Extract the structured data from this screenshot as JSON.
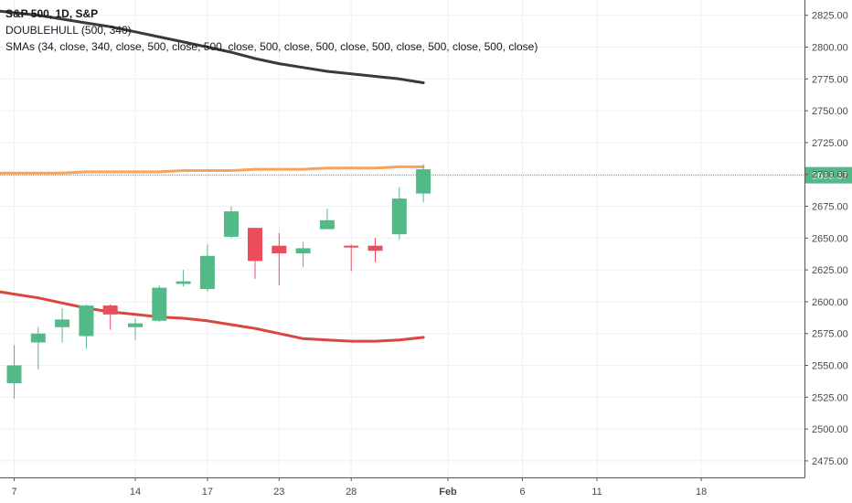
{
  "legend": {
    "title": "S&P 500, 1D, S&P",
    "line2": "DOUBLEHULL (500, 340)",
    "line3": "SMAs (34, close, 340, close, 500, close, 500, close, 500, close, 500, close, 500, close, 500, close, 500, close)"
  },
  "colors": {
    "up": "#53b987",
    "down": "#eb4d5c",
    "sma_dark": "#3a3a3a",
    "sma_orange": "#f7a35c",
    "sma_red": "#d9473d",
    "grid": "#eef0f3",
    "price_tag": "#53b987"
  },
  "chart_data": {
    "type": "candlestick",
    "x_ticks": [
      {
        "label": "7",
        "date": "2019-01-07"
      },
      {
        "label": "14",
        "date": "2019-01-14"
      },
      {
        "label": "17",
        "date": "2019-01-17"
      },
      {
        "label": "23",
        "date": "2019-01-23"
      },
      {
        "label": "28",
        "date": "2019-01-28"
      },
      {
        "label": "Feb",
        "date": "2019-02-01"
      },
      {
        "label": "6",
        "date": "2019-02-06"
      },
      {
        "label": "11",
        "date": "2019-02-11"
      },
      {
        "label": "18",
        "date": "2019-02-18"
      }
    ],
    "y_ticks": [
      2475,
      2500,
      2525,
      2550,
      2575,
      2600,
      2625,
      2650,
      2675,
      2700,
      2725,
      2750,
      2775,
      2800,
      2825
    ],
    "ylim": [
      2462,
      2837
    ],
    "last_price": "2699.37",
    "candles": [
      {
        "date": "2019-01-07",
        "open": 2536,
        "high": 2566,
        "low": 2524,
        "close": 2550
      },
      {
        "date": "2019-01-08",
        "open": 2568,
        "high": 2580,
        "low": 2547,
        "close": 2575
      },
      {
        "date": "2019-01-09",
        "open": 2580,
        "high": 2595,
        "low": 2568,
        "close": 2586
      },
      {
        "date": "2019-01-10",
        "open": 2573,
        "high": 2598,
        "low": 2563,
        "close": 2597
      },
      {
        "date": "2019-01-11",
        "open": 2597,
        "high": 2598,
        "low": 2578,
        "close": 2590
      },
      {
        "date": "2019-01-14",
        "open": 2580,
        "high": 2587,
        "low": 2570,
        "close": 2583
      },
      {
        "date": "2019-01-15",
        "open": 2585,
        "high": 2613,
        "low": 2584,
        "close": 2611
      },
      {
        "date": "2019-01-16",
        "open": 2614,
        "high": 2625,
        "low": 2612,
        "close": 2616
      },
      {
        "date": "2019-01-17",
        "open": 2610,
        "high": 2645,
        "low": 2608,
        "close": 2636
      },
      {
        "date": "2019-01-18",
        "open": 2651,
        "high": 2675,
        "low": 2650,
        "close": 2671
      },
      {
        "date": "2019-01-22",
        "open": 2658,
        "high": 2658,
        "low": 2618,
        "close": 2632
      },
      {
        "date": "2019-01-23",
        "open": 2644,
        "high": 2654,
        "low": 2613,
        "close": 2638
      },
      {
        "date": "2019-01-24",
        "open": 2638,
        "high": 2647,
        "low": 2627,
        "close": 2642
      },
      {
        "date": "2019-01-25",
        "open": 2657,
        "high": 2673,
        "low": 2657,
        "close": 2664
      },
      {
        "date": "2019-01-28",
        "open": 2644,
        "high": 2645,
        "low": 2624,
        "close": 2643
      },
      {
        "date": "2019-01-29",
        "open": 2644,
        "high": 2650,
        "low": 2631,
        "close": 2640
      },
      {
        "date": "2019-01-30",
        "open": 2653,
        "high": 2690,
        "low": 2649,
        "close": 2681
      },
      {
        "date": "2019-01-31",
        "open": 2685,
        "high": 2708,
        "low": 2678,
        "close": 2704
      }
    ],
    "series": [
      {
        "color": "#3a3a3a",
        "points": [
          {
            "date": "2019-01-07",
            "value": 2827
          },
          {
            "date": "2019-01-08",
            "value": 2825
          },
          {
            "date": "2019-01-09",
            "value": 2822
          },
          {
            "date": "2019-01-10",
            "value": 2819
          },
          {
            "date": "2019-01-11",
            "value": 2816
          },
          {
            "date": "2019-01-14",
            "value": 2812
          },
          {
            "date": "2019-01-15",
            "value": 2808
          },
          {
            "date": "2019-01-16",
            "value": 2804
          },
          {
            "date": "2019-01-17",
            "value": 2800
          },
          {
            "date": "2019-01-18",
            "value": 2796
          },
          {
            "date": "2019-01-22",
            "value": 2791
          },
          {
            "date": "2019-01-23",
            "value": 2787
          },
          {
            "date": "2019-01-24",
            "value": 2784
          },
          {
            "date": "2019-01-25",
            "value": 2781
          },
          {
            "date": "2019-01-28",
            "value": 2779
          },
          {
            "date": "2019-01-29",
            "value": 2777
          },
          {
            "date": "2019-01-30",
            "value": 2775
          },
          {
            "date": "2019-01-31",
            "value": 2772
          }
        ]
      },
      {
        "color": "#f7a35c",
        "points": [
          {
            "date": "2019-01-07",
            "value": 2701
          },
          {
            "date": "2019-01-08",
            "value": 2701
          },
          {
            "date": "2019-01-09",
            "value": 2701
          },
          {
            "date": "2019-01-10",
            "value": 2702
          },
          {
            "date": "2019-01-11",
            "value": 2702
          },
          {
            "date": "2019-01-14",
            "value": 2702
          },
          {
            "date": "2019-01-15",
            "value": 2702
          },
          {
            "date": "2019-01-16",
            "value": 2703
          },
          {
            "date": "2019-01-17",
            "value": 2703
          },
          {
            "date": "2019-01-18",
            "value": 2703
          },
          {
            "date": "2019-01-22",
            "value": 2704
          },
          {
            "date": "2019-01-23",
            "value": 2704
          },
          {
            "date": "2019-01-24",
            "value": 2704
          },
          {
            "date": "2019-01-25",
            "value": 2705
          },
          {
            "date": "2019-01-28",
            "value": 2705
          },
          {
            "date": "2019-01-29",
            "value": 2705
          },
          {
            "date": "2019-01-30",
            "value": 2706
          },
          {
            "date": "2019-01-31",
            "value": 2706
          }
        ]
      },
      {
        "color": "#d9473d",
        "points": [
          {
            "date": "2019-01-07",
            "value": 2606
          },
          {
            "date": "2019-01-08",
            "value": 2603
          },
          {
            "date": "2019-01-09",
            "value": 2599
          },
          {
            "date": "2019-01-10",
            "value": 2595
          },
          {
            "date": "2019-01-11",
            "value": 2592
          },
          {
            "date": "2019-01-14",
            "value": 2590
          },
          {
            "date": "2019-01-15",
            "value": 2588
          },
          {
            "date": "2019-01-16",
            "value": 2587
          },
          {
            "date": "2019-01-17",
            "value": 2585
          },
          {
            "date": "2019-01-18",
            "value": 2582
          },
          {
            "date": "2019-01-22",
            "value": 2579
          },
          {
            "date": "2019-01-23",
            "value": 2575
          },
          {
            "date": "2019-01-24",
            "value": 2571
          },
          {
            "date": "2019-01-25",
            "value": 2570
          },
          {
            "date": "2019-01-28",
            "value": 2569
          },
          {
            "date": "2019-01-29",
            "value": 2569
          },
          {
            "date": "2019-01-30",
            "value": 2570
          },
          {
            "date": "2019-01-31",
            "value": 2572
          }
        ]
      }
    ],
    "grid": true
  }
}
